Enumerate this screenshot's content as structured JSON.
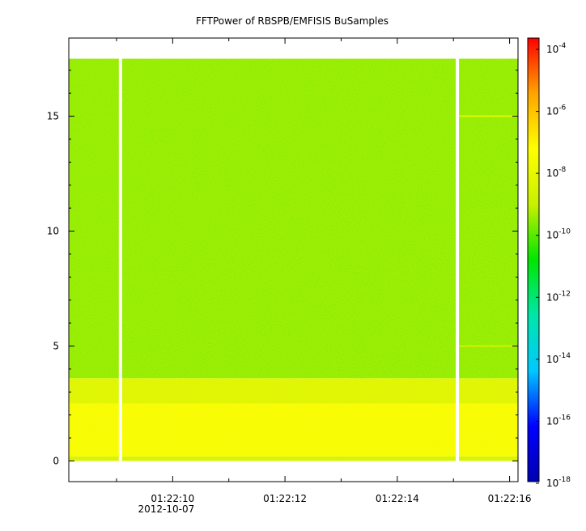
{
  "chart_data": {
    "type": "heatmap",
    "title": "FFTPower of RBSPB/EMFISIS  BuSamples",
    "xlabel": "",
    "ylabel": "",
    "x_ticks": [
      {
        "value": 10,
        "label": "01:22:10",
        "sublabel": "2012-10-07"
      },
      {
        "value": 12,
        "label": "01:22:12",
        "sublabel": ""
      },
      {
        "value": 14,
        "label": "01:22:14",
        "sublabel": ""
      },
      {
        "value": 16,
        "label": "01:22:16",
        "sublabel": ""
      }
    ],
    "xlim": [
      8.15,
      16.15
    ],
    "y_ticks": [
      0,
      5,
      10,
      15
    ],
    "ylim": [
      -0.9,
      18.4
    ],
    "data_y_range": [
      0,
      17.5
    ],
    "gaps_x": [
      9.07,
      15.07
    ],
    "colorbar": {
      "scale": "log",
      "colors": [
        "#0000b0",
        "#0000ff",
        "#00c8ff",
        "#00e6aa",
        "#00e600",
        "#c8f000",
        "#ffff00",
        "#ffa500",
        "#ff0000"
      ],
      "ticks": [
        {
          "base": "10",
          "exp": "-4"
        },
        {
          "base": "10",
          "exp": "-6"
        },
        {
          "base": "10",
          "exp": "-8"
        },
        {
          "base": "10",
          "exp": "-10"
        },
        {
          "base": "10",
          "exp": "-12"
        },
        {
          "base": "10",
          "exp": "-14"
        },
        {
          "base": "10",
          "exp": "-16"
        },
        {
          "base": "10",
          "exp": "-18"
        }
      ]
    },
    "bands": [
      {
        "y_from": 0,
        "y_to": 0.2,
        "log_power": -8.7
      },
      {
        "y_from": 0.2,
        "y_to": 2.5,
        "log_power": -7.6
      },
      {
        "y_from": 2.5,
        "y_to": 3.6,
        "log_power": -8.4
      },
      {
        "y_from": 3.6,
        "y_to": 17.5,
        "log_power": -9.6
      }
    ],
    "lines": [
      {
        "y": 15.0,
        "x_from": 15.1,
        "x_to": 16.15,
        "log_power": -8.3
      },
      {
        "y": 5.0,
        "x_from": 15.1,
        "x_to": 16.15,
        "log_power": -8.9
      }
    ]
  }
}
